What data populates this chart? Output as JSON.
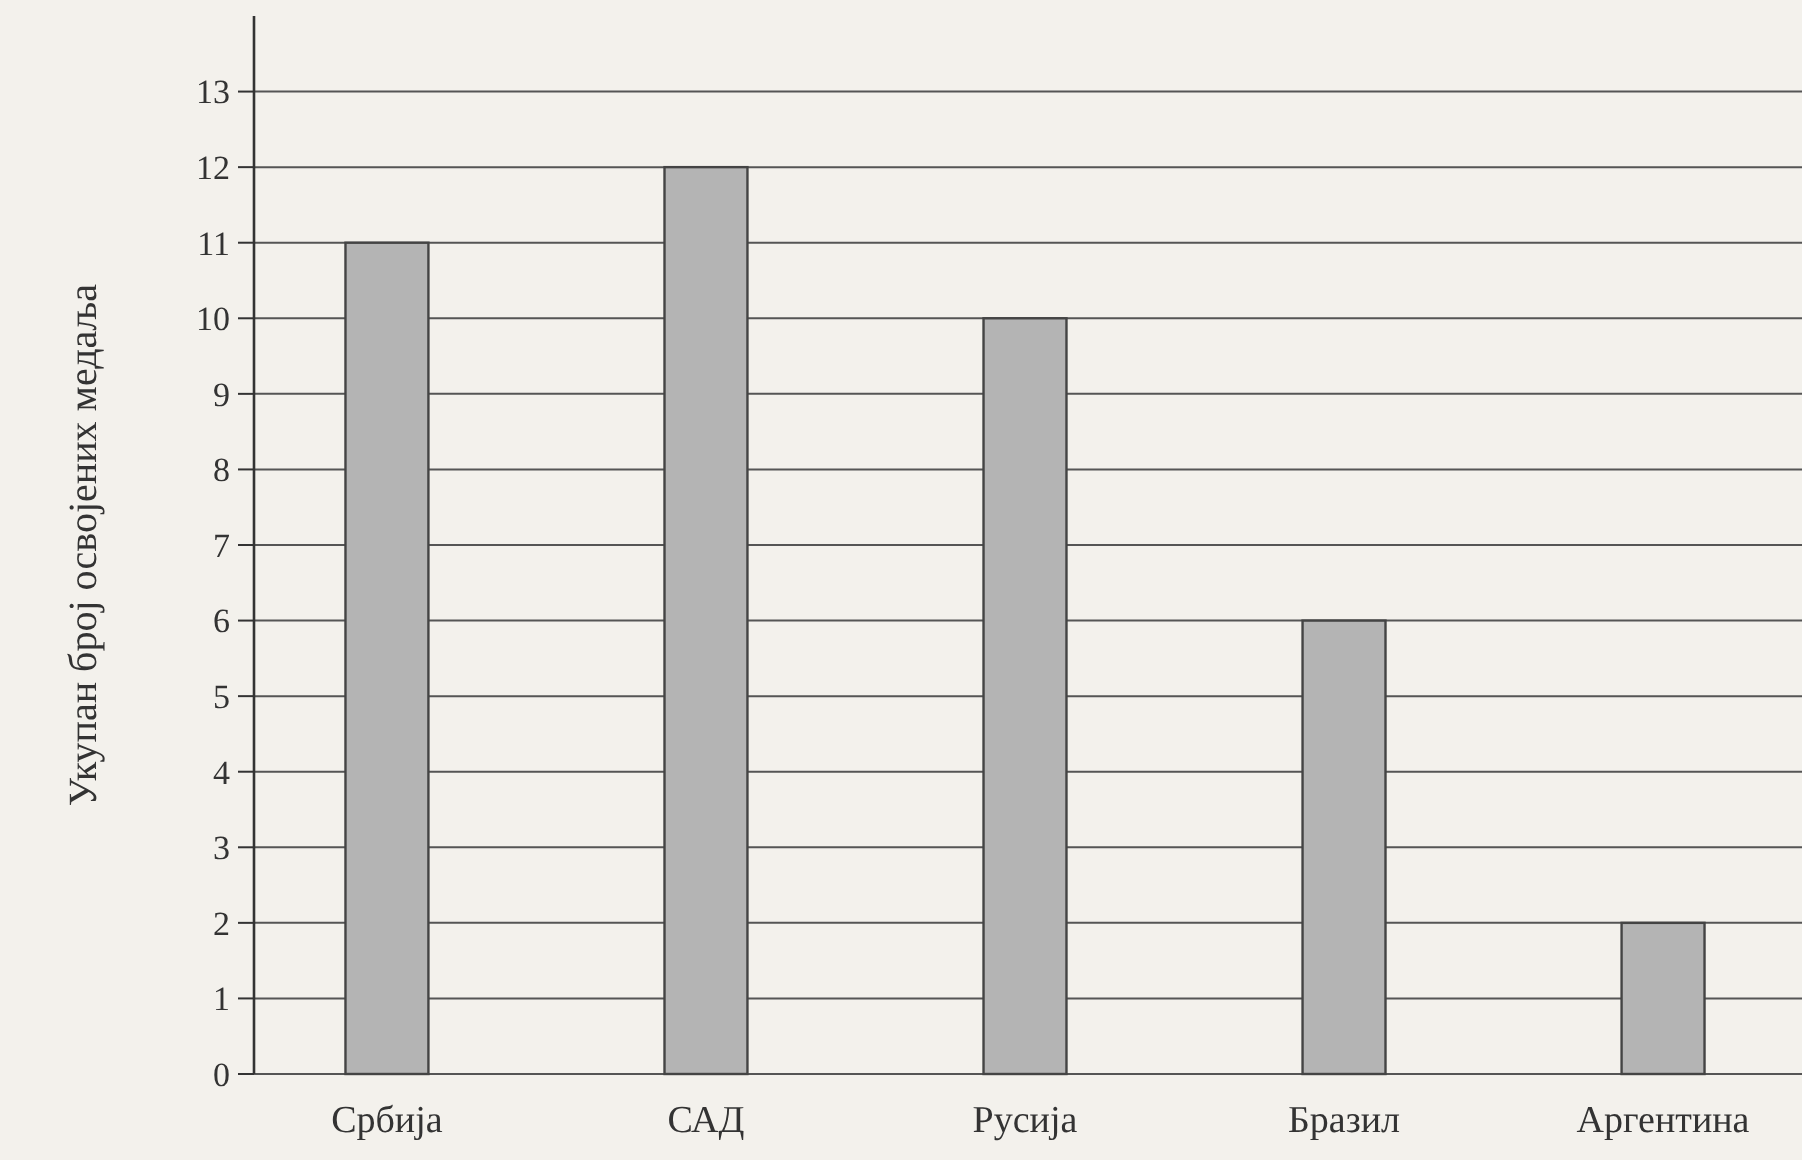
{
  "chart_data": {
    "type": "bar",
    "ylabel": "Укупан број освојених медаља",
    "categories": [
      "Србија",
      "САД",
      "Русија",
      "Бразил",
      "Аргентина"
    ],
    "values": [
      11,
      12,
      10,
      6,
      2
    ],
    "color": "#b4b4b4",
    "ylim": [
      0,
      14
    ],
    "yticks": [
      0,
      1,
      2,
      3,
      4,
      5,
      6,
      7,
      8,
      9,
      10,
      11,
      12,
      13
    ],
    "grid": "y"
  }
}
